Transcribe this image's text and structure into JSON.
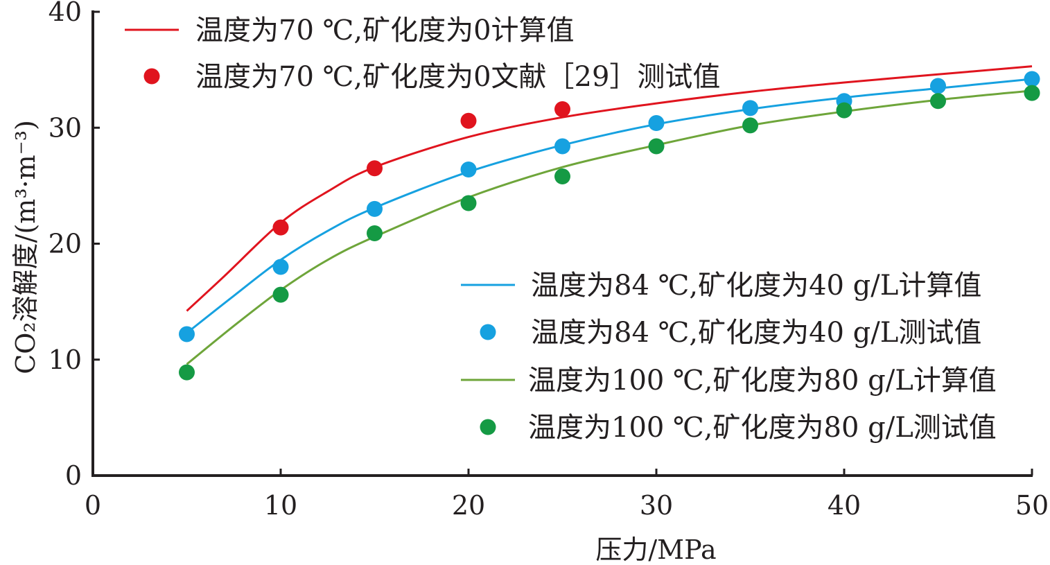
{
  "chart_data": {
    "type": "line",
    "xlabel": "压力/MPa",
    "ylabel": "CO₂溶解度/(m³·m⁻³)",
    "xlim": [
      0,
      50
    ],
    "ylim": [
      0,
      40
    ],
    "x_ticks": [
      "0",
      "10",
      "20",
      "30",
      "40",
      "50"
    ],
    "y_ticks": [
      "0",
      "10",
      "20",
      "30",
      "40"
    ],
    "grid": false,
    "series": [
      {
        "name": "温度为70 ℃,矿化度为0计算值",
        "kind": "line",
        "color": "#e0141e",
        "x": [
          5,
          7,
          10,
          12.5,
          15,
          20,
          25,
          30,
          35,
          40,
          45,
          50
        ],
        "y": [
          14.2,
          17.2,
          21.8,
          24.5,
          26.6,
          29.2,
          30.9,
          32.1,
          33.1,
          33.9,
          34.6,
          35.3
        ]
      },
      {
        "name": "温度为70 ℃,矿化度为0文献［29］测试值",
        "kind": "scatter",
        "color": "#e0141e",
        "x": [
          10,
          15,
          20,
          25
        ],
        "y": [
          21.4,
          26.5,
          30.6,
          31.6
        ]
      },
      {
        "name": "温度为84 ℃,矿化度为40 g/L计算值",
        "kind": "line",
        "color": "#16a1e0",
        "x": [
          5,
          7.5,
          10,
          12.5,
          15,
          20,
          25,
          30,
          35,
          40,
          45,
          50
        ],
        "y": [
          12.3,
          15.5,
          18.6,
          21.1,
          23.1,
          26.2,
          28.5,
          30.3,
          31.6,
          32.6,
          33.4,
          34.2
        ]
      },
      {
        "name": "温度为84 ℃,矿化度为40 g/L测试值",
        "kind": "scatter",
        "color": "#16a1e0",
        "x": [
          5,
          10,
          15,
          20,
          25,
          30,
          35,
          40,
          45,
          50
        ],
        "y": [
          12.2,
          18.0,
          23.0,
          26.4,
          28.4,
          30.4,
          31.7,
          32.3,
          33.6,
          34.2
        ]
      },
      {
        "name": "温度为100 ℃,矿化度为80 g/L计算值",
        "kind": "line",
        "color": "#6ea53a",
        "x": [
          5,
          7.5,
          10,
          12.5,
          15,
          20,
          25,
          30,
          35,
          40,
          45,
          50
        ],
        "y": [
          9.6,
          12.9,
          16.0,
          18.6,
          20.6,
          24.0,
          26.6,
          28.5,
          30.2,
          31.4,
          32.4,
          33.2
        ]
      },
      {
        "name": "温度为100 ℃,矿化度为80 g/L测试值",
        "kind": "scatter",
        "color": "#159a44",
        "x": [
          5,
          10,
          15,
          20,
          25,
          30,
          35,
          40,
          45,
          50
        ],
        "y": [
          8.9,
          15.6,
          20.9,
          23.5,
          25.8,
          28.4,
          30.2,
          31.5,
          32.3,
          33.0
        ]
      }
    ]
  }
}
